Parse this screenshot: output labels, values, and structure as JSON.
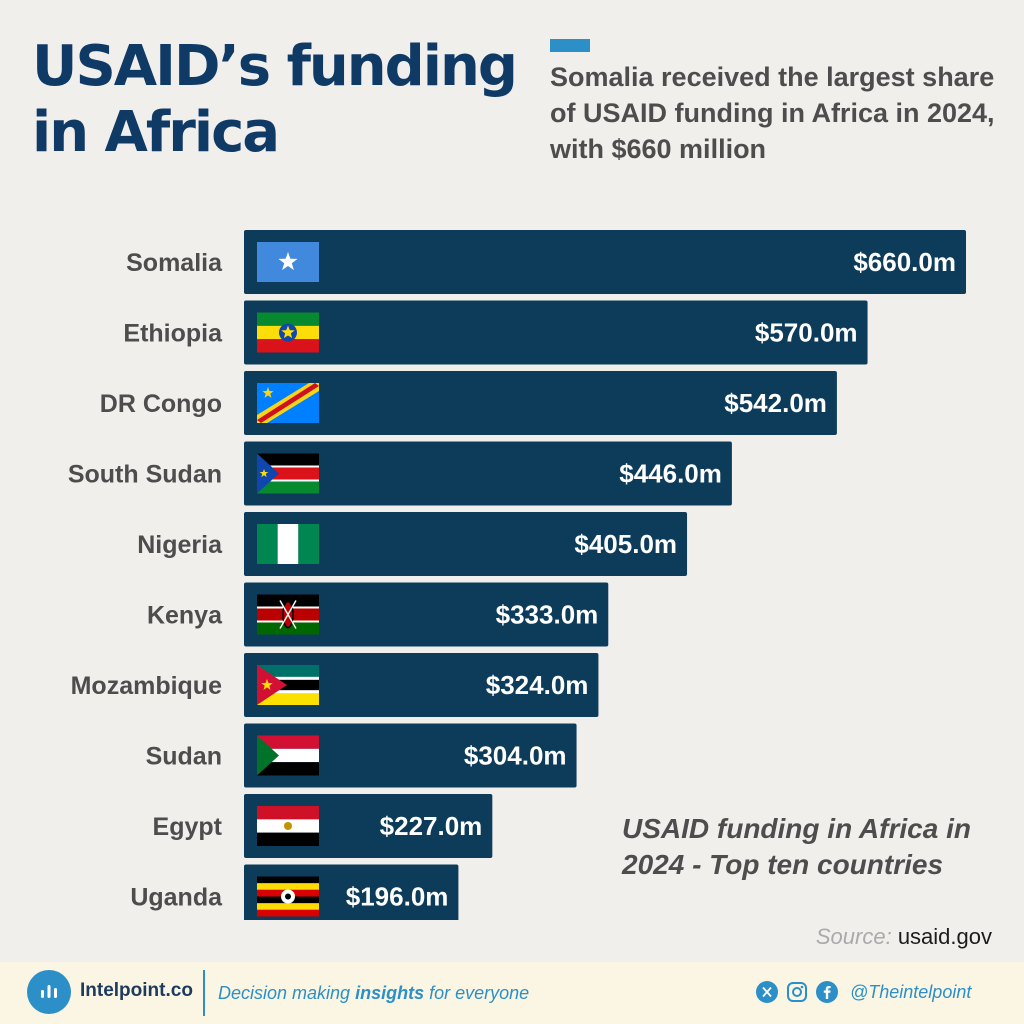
{
  "header": {
    "title": "USAID’s funding in Africa",
    "subtitle": "Somalia received the largest share of USAID funding in Africa in 2024, with $660 million"
  },
  "chart_data": {
    "type": "bar",
    "orientation": "horizontal",
    "title": "USAID funding in Africa in 2024 - Top ten countries",
    "categories": [
      "Somalia",
      "Ethiopia",
      "DR Congo",
      "South Sudan",
      "Nigeria",
      "Kenya",
      "Mozambique",
      "Sudan",
      "Egypt",
      "Uganda"
    ],
    "values": [
      660.0,
      570.0,
      542.0,
      446.0,
      405.0,
      333.0,
      324.0,
      304.0,
      227.0,
      196.0
    ],
    "value_labels": [
      "$660.0m",
      "$570.0m",
      "$542.0m",
      "$446.0m",
      "$405.0m",
      "$333.0m",
      "$324.0m",
      "$304.0m",
      "$227.0m",
      "$196.0m"
    ],
    "flags": [
      "somalia-flag",
      "ethiopia-flag",
      "dr-congo-flag",
      "south-sudan-flag",
      "nigeria-flag",
      "kenya-flag",
      "mozambique-flag",
      "sudan-flag",
      "egypt-flag",
      "uganda-flag"
    ],
    "unit": "$ million",
    "bar_color": "#0d3c5b",
    "label_color": "#4d4d4d",
    "grid": false
  },
  "source": {
    "label": "Source:",
    "value": "usaid.gov"
  },
  "footer": {
    "brand": "Intelpoint.co",
    "tagline_pre": "Decision making",
    "tagline_bold": "insights",
    "tagline_post": "for everyone",
    "handle": "@Theintelpoint",
    "social_icons": [
      "x-icon",
      "instagram-icon",
      "facebook-icon"
    ]
  },
  "colors": {
    "title": "#103a66",
    "accent": "#2c8fc8",
    "background": "#f1efec",
    "footer_bg": "#fbf6e3"
  }
}
